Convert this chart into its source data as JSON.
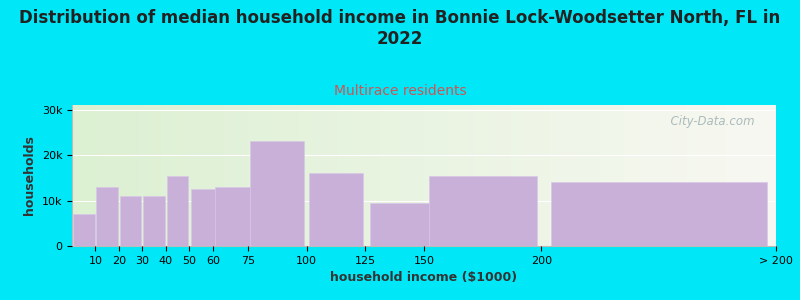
{
  "title": "Distribution of median household income in Bonnie Lock-Woodsetter North, FL in\n2022",
  "subtitle": "Multirace residents",
  "xlabel": "household income ($1000)",
  "ylabel": "households",
  "bar_labels": [
    "10",
    "20",
    "30",
    "40",
    "50",
    "60",
    "75",
    "100",
    "125",
    "150",
    "200",
    "> 200"
  ],
  "bar_values": [
    7000,
    13000,
    11000,
    11000,
    15500,
    12500,
    13000,
    23000,
    16000,
    9500,
    15500,
    14000
  ],
  "bar_widths": [
    10,
    10,
    10,
    10,
    10,
    15,
    25,
    25,
    25,
    50,
    50,
    100
  ],
  "bar_lefts": [
    0,
    10,
    20,
    30,
    40,
    50,
    60,
    75,
    100,
    125,
    150,
    200
  ],
  "bar_color": "#c8b0d8",
  "background_outer": "#00e8f8",
  "yticks": [
    0,
    10000,
    20000,
    30000
  ],
  "ytick_labels": [
    "0",
    "10k",
    "20k",
    "30k"
  ],
  "ylim": [
    0,
    31000
  ],
  "xlim": [
    0,
    300
  ],
  "title_fontsize": 12,
  "subtitle_fontsize": 10,
  "subtitle_color": "#cc5555",
  "axis_label_fontsize": 9,
  "tick_fontsize": 8,
  "watermark_text": "  City-Data.com",
  "watermark_color": "#aabbbb",
  "xtick_positions": [
    10,
    20,
    30,
    40,
    50,
    60,
    75,
    100,
    125,
    150,
    200,
    300
  ],
  "xtick_labels": [
    "10",
    "20",
    "30",
    "40",
    "50",
    "60",
    "75",
    "100",
    "125",
    "150",
    "200",
    "> 200"
  ]
}
